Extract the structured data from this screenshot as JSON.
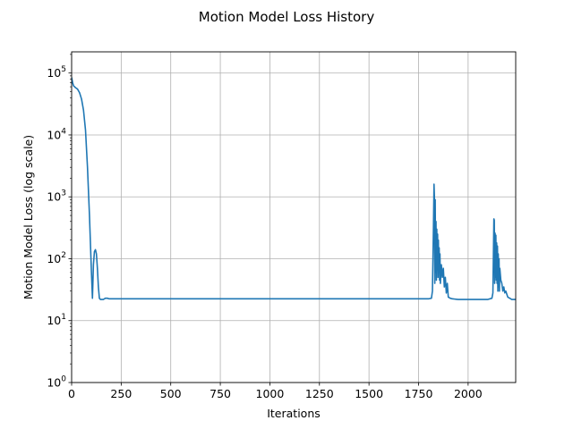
{
  "chart_data": {
    "type": "line",
    "title": "Motion Model Loss History",
    "xlabel": "Iterations",
    "ylabel": "Motion Model Loss (log scale)",
    "xlim": [
      0,
      2240
    ],
    "ylim": [
      1,
      220000
    ],
    "yscale": "log",
    "grid": true,
    "x_ticks": [
      0,
      250,
      500,
      750,
      1000,
      1250,
      1500,
      1750,
      2000
    ],
    "x_tick_labels": [
      "0",
      "250",
      "500",
      "750",
      "1000",
      "1250",
      "1500",
      "1750",
      "2000"
    ],
    "y_ticks": [
      1,
      10,
      100,
      1000,
      10000,
      100000
    ],
    "y_tick_base": [
      "10",
      "10",
      "10",
      "10",
      "10",
      "10"
    ],
    "y_tick_exp": [
      "0",
      "1",
      "2",
      "3",
      "4",
      "5"
    ],
    "line_color": "#1f77b4",
    "series": [
      {
        "x": [
          0,
          5,
          10,
          20,
          30,
          40,
          50,
          60,
          70,
          80,
          90,
          100,
          105,
          110,
          115,
          120,
          125,
          130,
          135,
          140,
          145,
          150,
          160,
          170,
          180,
          190,
          200,
          220,
          250,
          300,
          400,
          500,
          600,
          700,
          800,
          900,
          1000,
          1100,
          1200,
          1300,
          1400,
          1500,
          1600,
          1700,
          1800,
          1815,
          1820,
          1825,
          1828,
          1830,
          1832,
          1834,
          1836,
          1838,
          1840,
          1842,
          1844,
          1846,
          1848,
          1850,
          1852,
          1854,
          1856,
          1858,
          1860,
          1865,
          1870,
          1875,
          1880,
          1885,
          1890,
          1895,
          1900,
          1910,
          1920,
          1950,
          2000,
          2050,
          2100,
          2120,
          2125,
          2130,
          2132,
          2134,
          2136,
          2138,
          2140,
          2142,
          2144,
          2146,
          2148,
          2150,
          2152,
          2154,
          2156,
          2158,
          2160,
          2165,
          2170,
          2175,
          2180,
          2185,
          2190,
          2200,
          2210,
          2220,
          2230,
          2240
        ],
        "y": [
          85000,
          70000,
          62000,
          58000,
          55000,
          48000,
          38000,
          25000,
          12000,
          3000,
          500,
          60,
          23,
          80,
          130,
          140,
          120,
          70,
          35,
          23,
          22,
          22,
          22,
          23,
          23,
          22.5,
          22.5,
          22.5,
          22.5,
          22.5,
          22.5,
          22.5,
          22.5,
          22.5,
          22.5,
          22.5,
          22.5,
          22.5,
          22.5,
          22.5,
          22.5,
          22.5,
          22.5,
          22.5,
          22.5,
          23,
          30,
          300,
          1600,
          1000,
          40,
          900,
          60,
          400,
          45,
          300,
          70,
          250,
          50,
          200,
          60,
          150,
          45,
          120,
          40,
          80,
          50,
          70,
          35,
          50,
          28,
          40,
          24,
          23,
          22.5,
          22,
          22,
          22,
          22,
          23,
          28,
          440,
          420,
          40,
          260,
          50,
          240,
          45,
          180,
          40,
          160,
          30,
          120,
          35,
          100,
          30,
          70,
          45,
          40,
          30,
          35,
          28,
          30,
          24,
          23,
          22,
          22,
          22
        ]
      }
    ]
  }
}
